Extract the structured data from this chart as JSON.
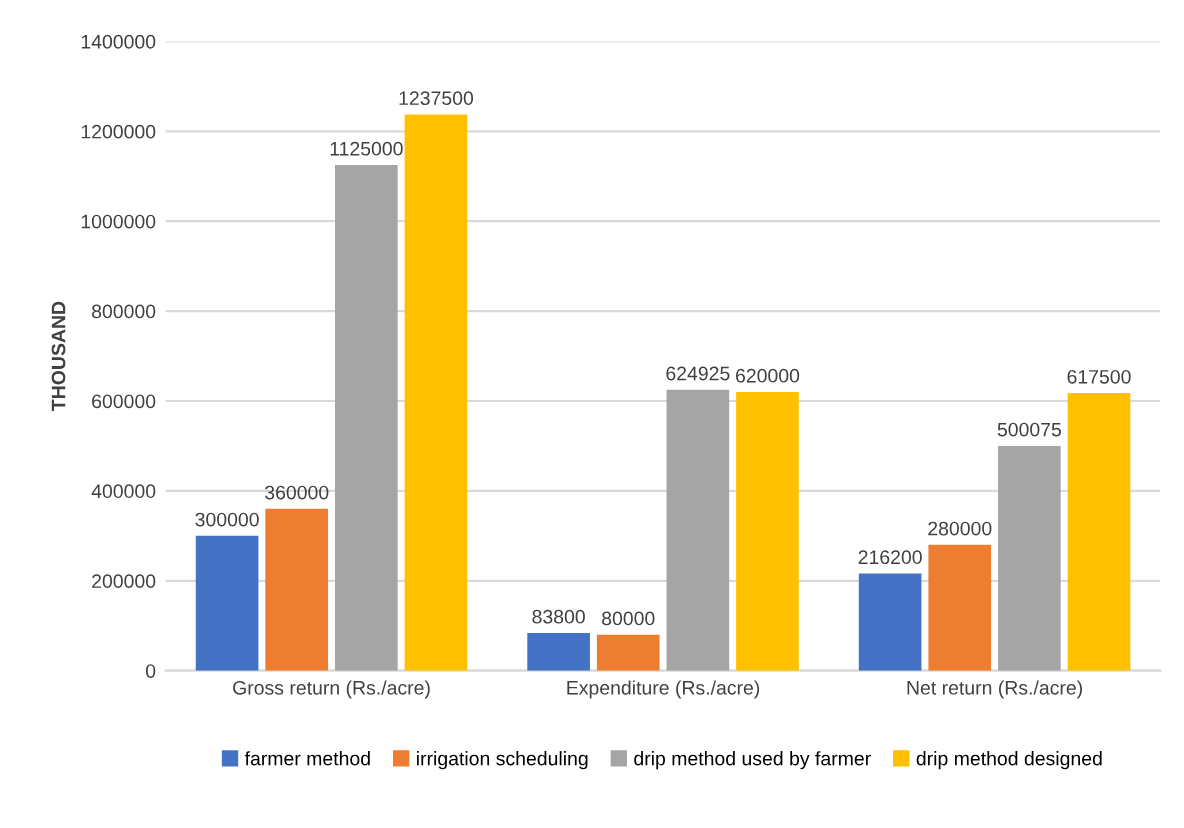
{
  "chart_data": {
    "type": "bar",
    "ylabel": "THOUSAND",
    "categories": [
      "Gross return (Rs./acre)",
      "Expenditure (Rs./acre)",
      "Net return (Rs./acre)"
    ],
    "series": [
      {
        "name": "farmer method",
        "color": "#4472c4",
        "values": [
          300000,
          83800,
          216200
        ]
      },
      {
        "name": "irrigation scheduling",
        "color": "#ed7d31",
        "values": [
          360000,
          80000,
          280000
        ]
      },
      {
        "name": "drip method used by farmer",
        "color": "#a5a5a5",
        "values": [
          1125000,
          624925,
          500075
        ]
      },
      {
        "name": "drip method designed",
        "color": "#ffc000",
        "values": [
          1237500,
          620000,
          617500
        ]
      }
    ],
    "ylim": [
      0,
      1400000
    ],
    "yticks": [
      0,
      200000,
      400000,
      600000,
      800000,
      1000000,
      1200000,
      1400000
    ],
    "grid": "y",
    "legend": "bottom",
    "data_labels": true
  }
}
